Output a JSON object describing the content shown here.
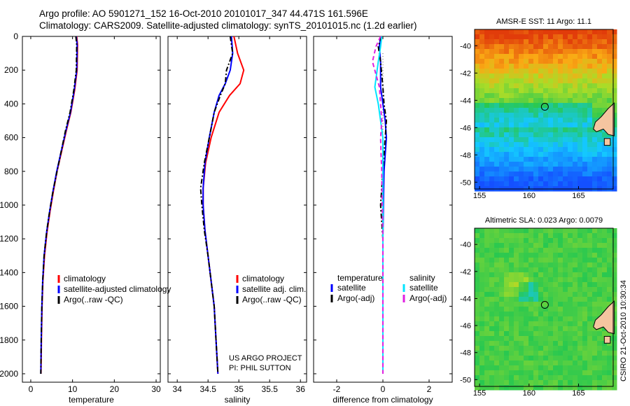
{
  "header": {
    "line1": "Argo profile: AO 5901271_152 16-Oct-2010 20101017_347 44.471S 161.596E",
    "line2": "Climatology: CARS2009. Satellite-adjusted climatology: synTS_20101015.nc (1.2d earlier)"
  },
  "credits": {
    "project": "US ARGO PROJECT",
    "pi": "PI: PHIL SUTTON",
    "timestamp": "CSIRO 21-Oct-2010 10:30:34"
  },
  "colors": {
    "climatology": "#ff0000",
    "satellite": "#0000ff",
    "argo": "#000000",
    "diff_satellite": "#00e5ff",
    "diff_argo": "#e020e0",
    "land": "#f5c5a0"
  },
  "chart_data": [
    {
      "type": "line",
      "name": "temperature-profile",
      "xlabel": "temperature",
      "ylabel": "",
      "xlim": [
        -2,
        31
      ],
      "ylim": [
        2050,
        0
      ],
      "xticks": [
        0,
        10,
        20,
        30
      ],
      "yticks": [
        0,
        200,
        400,
        600,
        800,
        1000,
        1200,
        1400,
        1600,
        1800,
        2000
      ],
      "legend": [
        "climatology",
        "satellite-adjusted climatology",
        "Argo(..raw -QC)"
      ],
      "series": [
        {
          "name": "climatology",
          "color": "#ff0000",
          "dash": "",
          "x": [
            11.0,
            11.2,
            11.1,
            10.5,
            9.6,
            8.5,
            7.4,
            6.3,
            5.4,
            4.6,
            3.9,
            3.3,
            2.9,
            2.7,
            2.55,
            2.45
          ],
          "y": [
            0,
            50,
            200,
            320,
            450,
            560,
            680,
            800,
            920,
            1040,
            1160,
            1300,
            1450,
            1600,
            1800,
            2000
          ]
        },
        {
          "name": "satellite-adjusted climatology",
          "color": "#0000ff",
          "dash": "",
          "x": [
            10.9,
            11.1,
            11.0,
            10.4,
            9.5,
            8.4,
            7.3,
            6.2,
            5.3,
            4.5,
            3.8,
            3.2,
            2.85,
            2.65,
            2.5,
            2.4
          ],
          "y": [
            0,
            50,
            200,
            320,
            450,
            560,
            680,
            800,
            920,
            1040,
            1160,
            1300,
            1450,
            1600,
            1800,
            2000
          ]
        },
        {
          "name": "Argo(..raw -QC)",
          "color": "#000000",
          "dash": "7,3,2,3",
          "x": [
            10.8,
            11.0,
            10.9,
            10.3,
            9.4,
            8.3,
            7.3,
            6.3,
            5.3,
            4.5,
            3.8,
            3.2,
            2.85,
            2.65,
            2.5,
            2.4
          ],
          "y": [
            0,
            50,
            200,
            320,
            450,
            560,
            680,
            800,
            920,
            1040,
            1160,
            1300,
            1450,
            1600,
            1800,
            2000
          ]
        }
      ]
    },
    {
      "type": "line",
      "name": "salinity-profile",
      "xlabel": "salinity",
      "ylabel": "",
      "xlim": [
        33.85,
        36.1
      ],
      "ylim": [
        2050,
        0
      ],
      "xticks": [
        34,
        34.5,
        35,
        35.5,
        36
      ],
      "xticklabels": [
        "34",
        "34.5",
        "35",
        "35.5",
        "36"
      ],
      "legend": [
        "climatology",
        "satellite adj. clim.",
        "Argo(..raw -QC)"
      ],
      "series": [
        {
          "name": "climatology",
          "color": "#ff0000",
          "dash": "",
          "x": [
            34.92,
            34.98,
            35.08,
            35.02,
            34.85,
            34.68,
            34.55,
            34.46,
            34.42,
            34.42,
            34.45,
            34.5,
            34.55,
            34.6,
            34.63,
            34.66
          ],
          "y": [
            0,
            100,
            200,
            280,
            350,
            450,
            600,
            750,
            900,
            1000,
            1150,
            1300,
            1450,
            1600,
            1800,
            2000
          ]
        },
        {
          "name": "satellite adj. clim.",
          "color": "#0000ff",
          "dash": "",
          "x": [
            34.88,
            34.9,
            34.86,
            34.78,
            34.68,
            34.6,
            34.52,
            34.45,
            34.42,
            34.42,
            34.45,
            34.5,
            34.55,
            34.6,
            34.63,
            34.66
          ],
          "y": [
            0,
            100,
            200,
            280,
            350,
            450,
            600,
            750,
            900,
            1000,
            1150,
            1300,
            1450,
            1600,
            1800,
            2000
          ]
        },
        {
          "name": "Argo(..raw -QC)",
          "color": "#000000",
          "dash": "7,3,2,3",
          "x": [
            34.86,
            34.9,
            34.8,
            34.78,
            34.7,
            34.6,
            34.52,
            34.44,
            34.38,
            34.4,
            34.44,
            34.5,
            34.55,
            34.6,
            34.63,
            34.66
          ],
          "y": [
            0,
            100,
            200,
            280,
            350,
            450,
            600,
            750,
            900,
            1000,
            1150,
            1300,
            1450,
            1600,
            1800,
            2000
          ]
        }
      ]
    },
    {
      "type": "line",
      "name": "difference-profile",
      "xlabel": "difference from climatology",
      "ylabel": "",
      "xlim": [
        -3,
        3
      ],
      "ylim": [
        2050,
        0
      ],
      "xticks": [
        -2,
        0,
        2
      ],
      "legend_groups": [
        {
          "title": "temperature",
          "items": [
            "satellite",
            "Argo(-adj)"
          ]
        },
        {
          "title": "salinity",
          "items": [
            "satellite",
            "Argo(-adj)"
          ]
        }
      ],
      "series": [
        {
          "name": "temperature satellite",
          "color": "#0000ff",
          "dash": "",
          "x": [
            -0.1,
            -0.15,
            -0.1,
            -0.1,
            0.0,
            0.1,
            0.15,
            0.1,
            0.05,
            0.02,
            0.0,
            0.0,
            0.0,
            0.0,
            0.0,
            0.0
          ],
          "y": [
            0,
            60,
            150,
            300,
            400,
            500,
            600,
            700,
            800,
            1000,
            1200,
            1400,
            1600,
            1800,
            1900,
            2000
          ]
        },
        {
          "name": "temperature Argo(-adj)",
          "color": "#000000",
          "dash": "7,3,2,3",
          "x": [
            -0.05,
            -0.2,
            -0.1,
            0.0,
            0.05,
            0.15,
            0.1,
            0.05,
            0.0,
            -0.1,
            0.0,
            0.0,
            0.0,
            0.0,
            0.0,
            0.0
          ],
          "y": [
            0,
            60,
            150,
            300,
            400,
            500,
            600,
            700,
            800,
            1000,
            1200,
            1400,
            1600,
            1800,
            1900,
            2000
          ]
        },
        {
          "name": "salinity satellite",
          "color": "#00e5ff",
          "dash": "",
          "x": [
            -0.05,
            -0.1,
            -0.2,
            -0.35,
            -0.2,
            -0.1,
            0.0,
            0.0,
            0.0,
            0.0,
            0.0,
            0.0,
            0.0,
            0.0,
            0.0,
            0.0
          ],
          "y": [
            0,
            60,
            150,
            300,
            400,
            500,
            600,
            700,
            800,
            1000,
            1200,
            1400,
            1600,
            1800,
            1900,
            2000
          ]
        },
        {
          "name": "salinity Argo(-adj)",
          "color": "#e020e0",
          "dash": "6,4",
          "x": [
            -0.1,
            -0.3,
            -0.45,
            -0.15,
            -0.1,
            -0.05,
            -0.1,
            -0.08,
            -0.05,
            -0.03,
            0.0,
            0.0,
            0.0,
            0.0,
            0.0,
            0.0
          ],
          "y": [
            0,
            60,
            150,
            300,
            400,
            500,
            600,
            700,
            800,
            1000,
            1200,
            1400,
            1600,
            1800,
            1900,
            2000
          ]
        }
      ]
    },
    {
      "type": "heatmap",
      "name": "sst-map",
      "title": "AMSR-E SST: 11  Argo: 11.1",
      "xlim": [
        154.5,
        168.5
      ],
      "ylim": [
        -50.5,
        -38.8
      ],
      "xticks": [
        155,
        160,
        165
      ],
      "yticks": [
        -40,
        -42,
        -44,
        -46,
        -48,
        -50
      ],
      "profile_location": {
        "lon": 161.596,
        "lat": -44.471
      }
    },
    {
      "type": "heatmap",
      "name": "sla-map",
      "title": "Altimetric SLA: 0.023  Argo: 0.0079",
      "xlim": [
        154.5,
        168.5
      ],
      "ylim": [
        -50.5,
        -38.8
      ],
      "xticks": [
        155,
        160,
        165
      ],
      "yticks": [
        -40,
        -42,
        -44,
        -46,
        -48,
        -50
      ],
      "profile_location": {
        "lon": 161.596,
        "lat": -44.471
      }
    }
  ]
}
